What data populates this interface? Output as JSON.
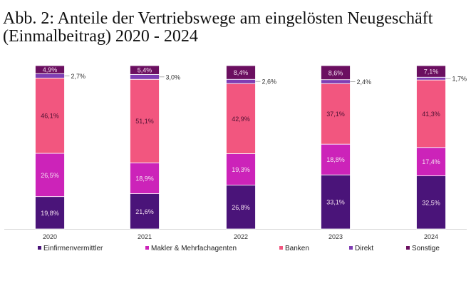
{
  "chart_data": {
    "type": "bar",
    "stacked": true,
    "title": "Abb. 2: Anteile der Vertriebswege am eingelösten Neugeschäft (Einmalbeitrag) 2020 - 2024",
    "xlabel": "",
    "ylabel": "",
    "ylim": [
      0,
      100
    ],
    "grid": false,
    "legend": "bottom",
    "categories": [
      "2020",
      "2021",
      "2022",
      "2023",
      "2024"
    ],
    "series": [
      {
        "name": "Einfirmenvermittler",
        "color": "#4a1479",
        "values": [
          19.8,
          21.6,
          26.8,
          33.1,
          32.5
        ],
        "labels": [
          "19,8%",
          "21,6%",
          "26,8%",
          "33,1%",
          "32,5%"
        ]
      },
      {
        "name": "Makler & Mehrfachagenten",
        "color": "#cc23b9",
        "values": [
          26.5,
          18.9,
          19.3,
          18.8,
          17.4
        ],
        "labels": [
          "26,5%",
          "18,9%",
          "19,3%",
          "18,8%",
          "17,4%"
        ]
      },
      {
        "name": "Banken",
        "color": "#f2567f",
        "values": [
          46.1,
          51.1,
          42.9,
          37.1,
          41.3
        ],
        "labels": [
          "46,1%",
          "51,1%",
          "42,9%",
          "37,1%",
          "41,3%"
        ]
      },
      {
        "name": "Direkt",
        "color": "#7f3db3",
        "values": [
          2.7,
          3.0,
          2.6,
          2.4,
          1.7
        ],
        "labels": [
          "2,7%",
          "3,0%",
          "2,6%",
          "2,4%",
          "1,7%"
        ]
      },
      {
        "name": "Sonstige",
        "color": "#6b0f60",
        "values": [
          4.9,
          5.4,
          8.4,
          8.6,
          7.1
        ],
        "labels": [
          "4,9%",
          "5,4%",
          "8,4%",
          "8,6%",
          "7,1%"
        ]
      }
    ]
  }
}
